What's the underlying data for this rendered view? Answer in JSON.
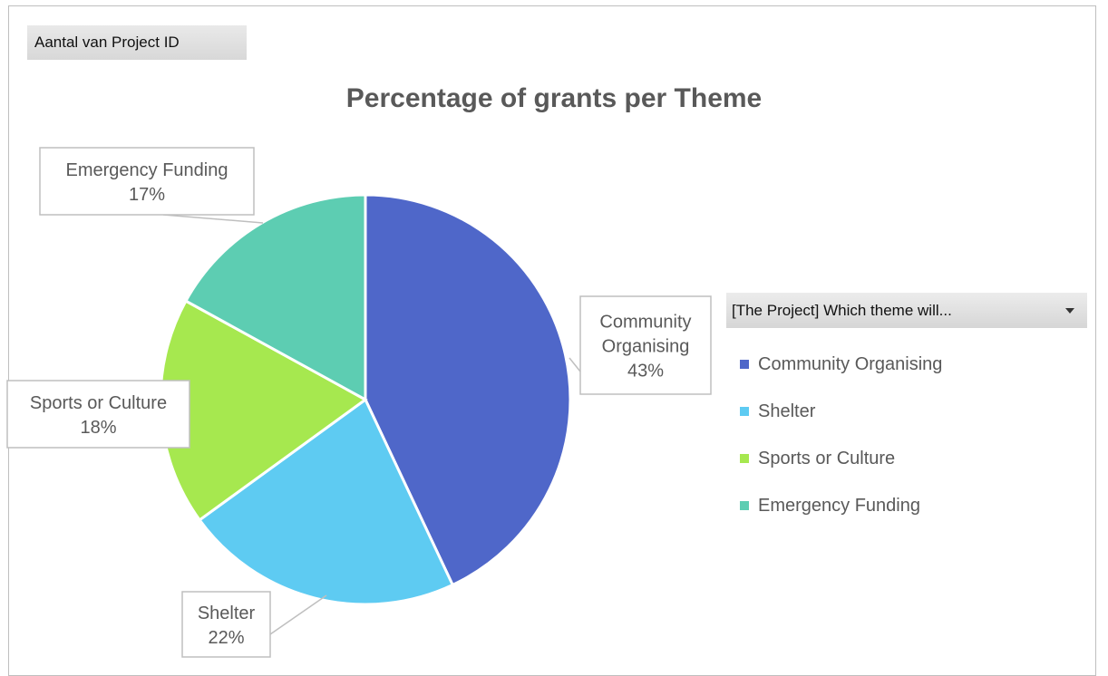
{
  "pivot": {
    "value_field_label": "Aantal van Project ID",
    "legend_field_label": "[The Project] Which theme will..."
  },
  "chart_data": {
    "type": "pie",
    "title": "Percentage of grants per Theme",
    "legend_position": "right",
    "categories": [
      "Community Organising",
      "Shelter",
      "Sports or Culture",
      "Emergency Funding"
    ],
    "values": [
      43,
      22,
      18,
      17
    ],
    "value_unit": "%",
    "data_labels": [
      {
        "lines": [
          "Community",
          "Organising",
          "43%"
        ]
      },
      {
        "lines": [
          "Shelter",
          "22%"
        ]
      },
      {
        "lines": [
          "Sports or Culture",
          "18%"
        ]
      },
      {
        "lines": [
          "Emergency Funding",
          "17%"
        ]
      }
    ],
    "colors": [
      "#4f67c9",
      "#5ecbf2",
      "#a6e84f",
      "#5dcdb2"
    ]
  }
}
